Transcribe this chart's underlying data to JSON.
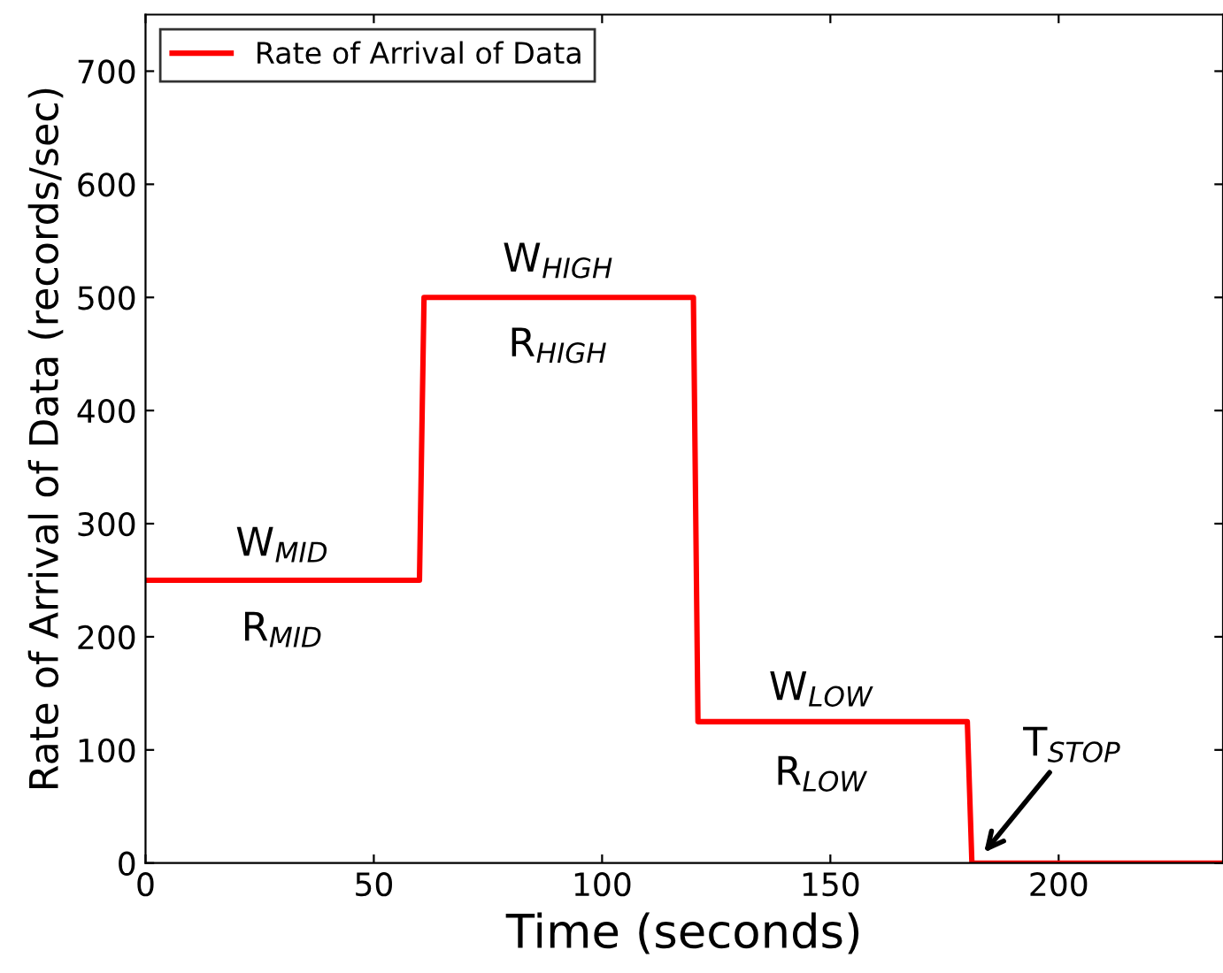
{
  "chart_data": {
    "type": "line",
    "xlabel": "Time (seconds)",
    "ylabel": "Rate of Arrival of Data (records/sec)",
    "x": [
      0,
      60,
      61,
      120,
      121,
      180,
      181,
      236
    ],
    "series": [
      {
        "name": "Rate of Arrival of Data",
        "color": "#ff0000",
        "values": [
          250,
          250,
          500,
          500,
          125,
          125,
          0,
          0
        ]
      }
    ],
    "xlim": [
      0,
      236
    ],
    "xticks": [
      0,
      50,
      100,
      150,
      200
    ],
    "ylim": [
      0,
      750
    ],
    "yticks": [
      0,
      100,
      200,
      300,
      400,
      500,
      600,
      700
    ],
    "grid": false,
    "legend": "top left",
    "marker": "none",
    "line_style": "solid",
    "annotations": [
      "W$_{MID}$",
      "R$_{MID}$",
      "W$_{HIGH}$",
      "R$_{HIGH}$",
      "W$_{LOW}$",
      "R$_{LOW}$",
      {
        "text": "T$_{STOP}$",
        "x": 181,
        "y": 0
      }
    ]
  }
}
